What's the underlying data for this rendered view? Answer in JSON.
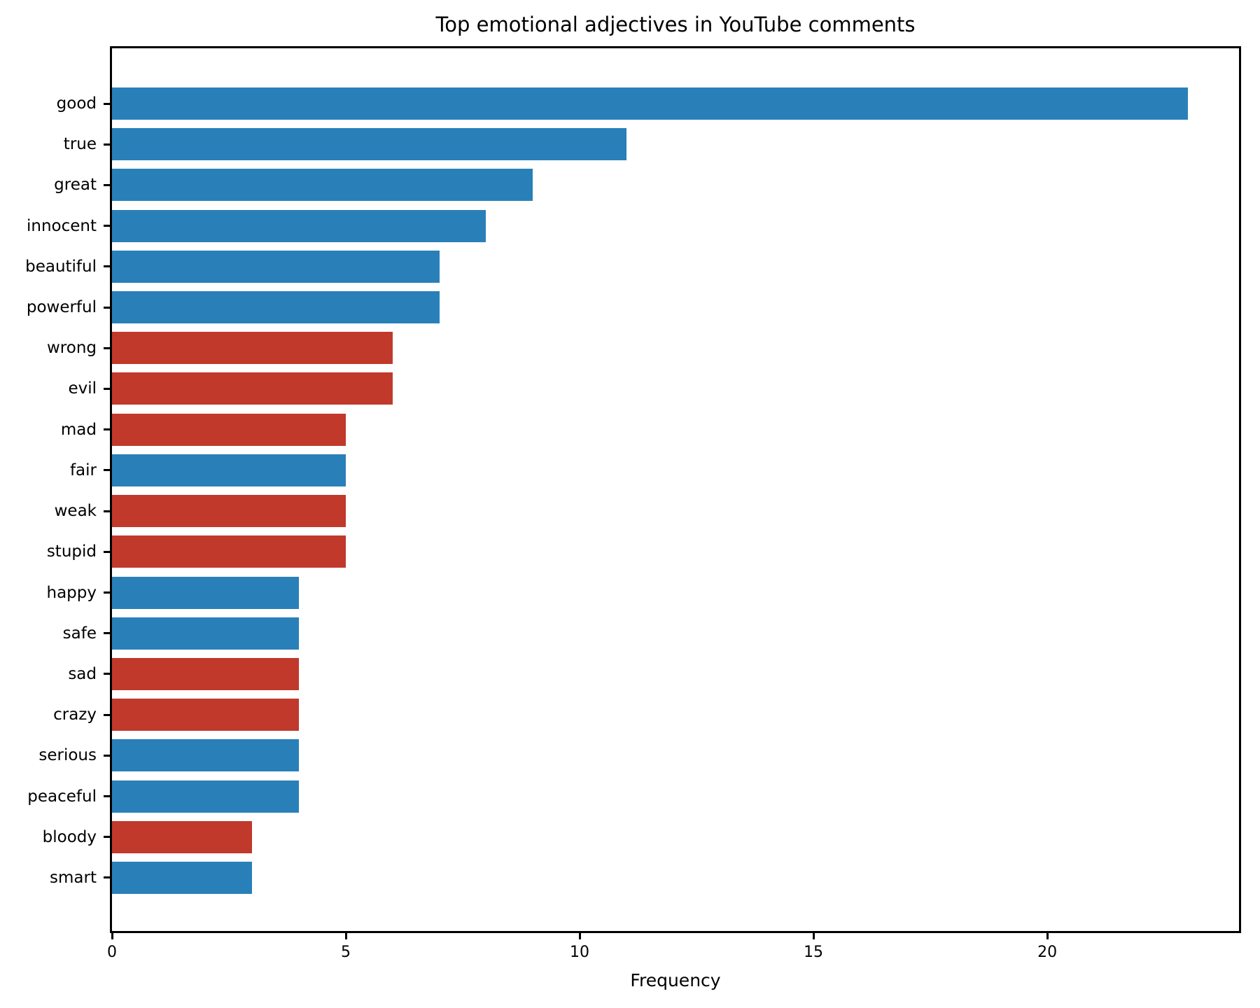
{
  "chart_data": {
    "type": "bar",
    "orientation": "horizontal",
    "title": "Top emotional adjectives in YouTube comments",
    "xlabel": "Frequency",
    "ylabel": "",
    "categories": [
      "good",
      "true",
      "great",
      "innocent",
      "beautiful",
      "powerful",
      "wrong",
      "evil",
      "mad",
      "fair",
      "weak",
      "stupid",
      "happy",
      "safe",
      "sad",
      "crazy",
      "serious",
      "peaceful",
      "bloody",
      "smart"
    ],
    "values": [
      23,
      11,
      9,
      8,
      7,
      7,
      6,
      6,
      5,
      5,
      5,
      5,
      4,
      4,
      4,
      4,
      4,
      4,
      3,
      3
    ],
    "sentiments": [
      "positive",
      "positive",
      "positive",
      "positive",
      "positive",
      "positive",
      "negative",
      "negative",
      "negative",
      "positive",
      "negative",
      "negative",
      "positive",
      "positive",
      "negative",
      "negative",
      "positive",
      "positive",
      "negative",
      "positive"
    ],
    "colors": {
      "positive": "#2980b9",
      "negative": "#c0392b"
    },
    "xlim": [
      0,
      24.1
    ],
    "xticks": [
      0,
      5,
      10,
      15,
      20
    ],
    "grid": false,
    "legend": null,
    "background": "#ffffff"
  }
}
